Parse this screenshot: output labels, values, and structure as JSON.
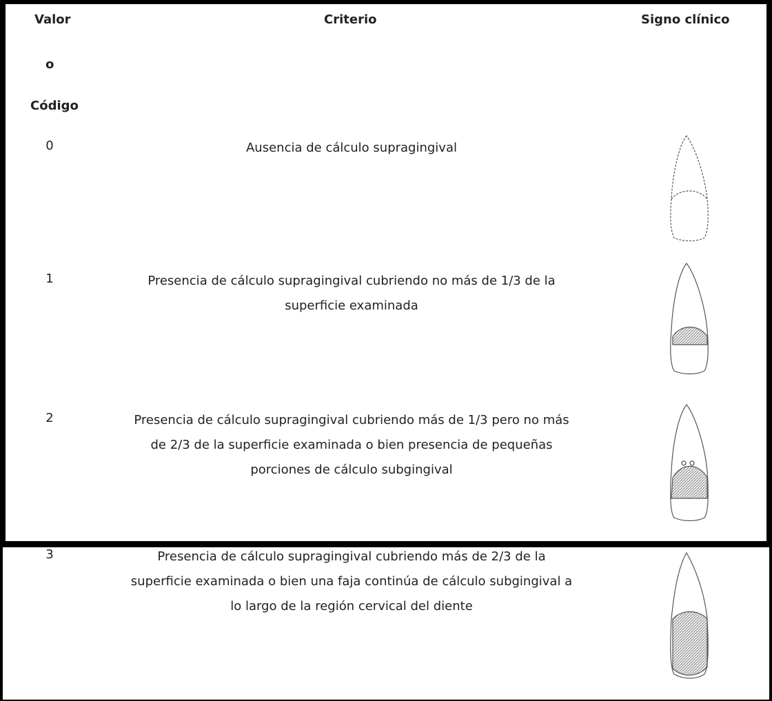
{
  "header": {
    "code": [
      "Valor",
      "o",
      "Código"
    ],
    "criterion": "Criterio",
    "sign": "Signo clínico"
  },
  "rows": [
    {
      "code": "0",
      "criterion": [
        "Ausencia de cálculo supragingival"
      ]
    },
    {
      "code": "1",
      "criterion": [
        "Presencia de cálculo supragingival cubriendo no más de 1/3 de la",
        "superficie examinada"
      ]
    },
    {
      "code": "2",
      "criterion": [
        "Presencia de cálculo supragingival cubriendo más de 1/3 pero no más",
        "de 2/3 de la superficie examinada o bien presencia de pequeñas",
        "porciones de cálculo subgingival"
      ]
    },
    {
      "code": "3",
      "criterion": [
        "Presencia de cálculo supragingival cubriendo más de 2/3 de la",
        "superficie examinada o bien una faja continúa de cálculo subgingival a",
        "lo largo de la región cervical del diente"
      ]
    }
  ]
}
